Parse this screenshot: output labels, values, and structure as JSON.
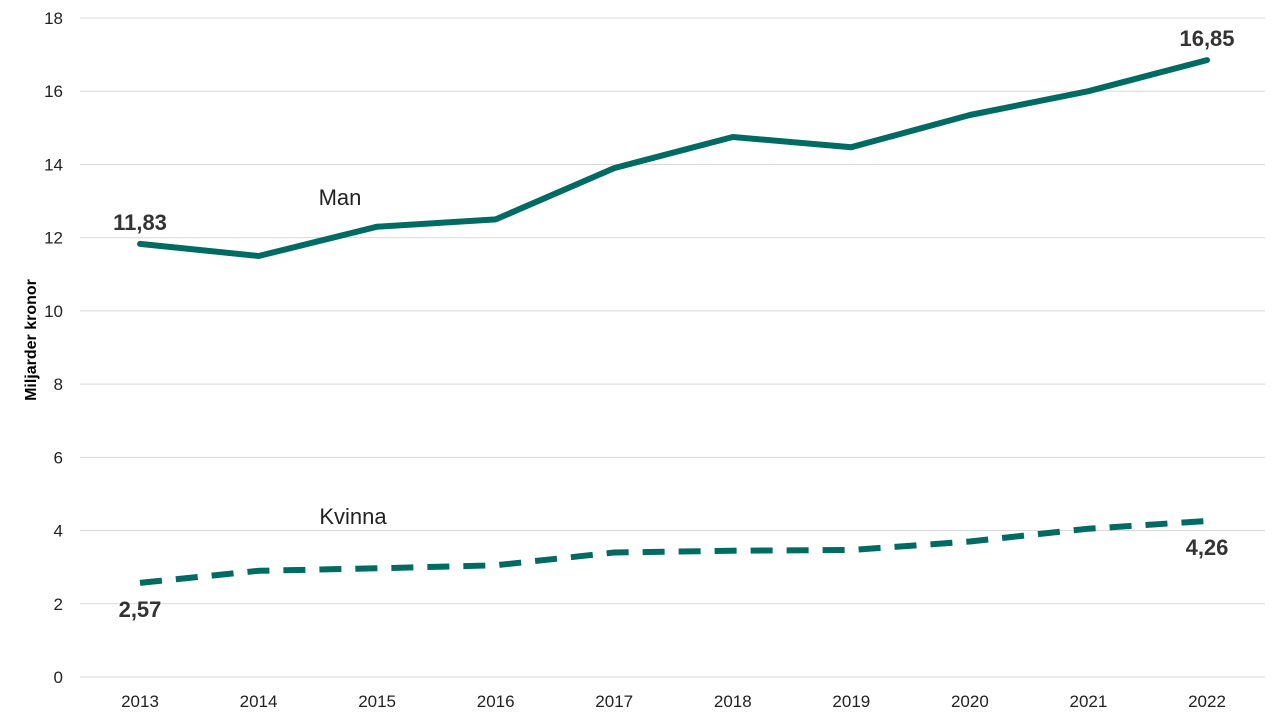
{
  "chart_data": {
    "type": "line",
    "ylabel": "Miljarder kronor",
    "xlabel": "",
    "ylim": [
      0,
      18
    ],
    "y_ticks": [
      0,
      2,
      4,
      6,
      8,
      10,
      12,
      14,
      16,
      18
    ],
    "grid": true,
    "x": [
      "2013",
      "2014",
      "2015",
      "2016",
      "2017",
      "2018",
      "2019",
      "2020",
      "2021",
      "2022"
    ],
    "series": [
      {
        "name": "Man",
        "style": "solid",
        "color": "#006b63",
        "values": [
          11.83,
          11.5,
          12.3,
          12.5,
          13.9,
          14.75,
          14.47,
          15.35,
          16.0,
          16.85
        ],
        "annotations": [
          {
            "index": 0,
            "text": "11,83"
          },
          {
            "index": 9,
            "text": "16,85"
          }
        ]
      },
      {
        "name": "Kvinna",
        "style": "dashed",
        "color": "#006b63",
        "values": [
          2.57,
          2.9,
          2.97,
          3.05,
          3.4,
          3.45,
          3.47,
          3.7,
          4.05,
          4.26
        ],
        "annotations": [
          {
            "index": 0,
            "text": "2,57"
          },
          {
            "index": 9,
            "text": "4,26"
          }
        ]
      }
    ]
  }
}
